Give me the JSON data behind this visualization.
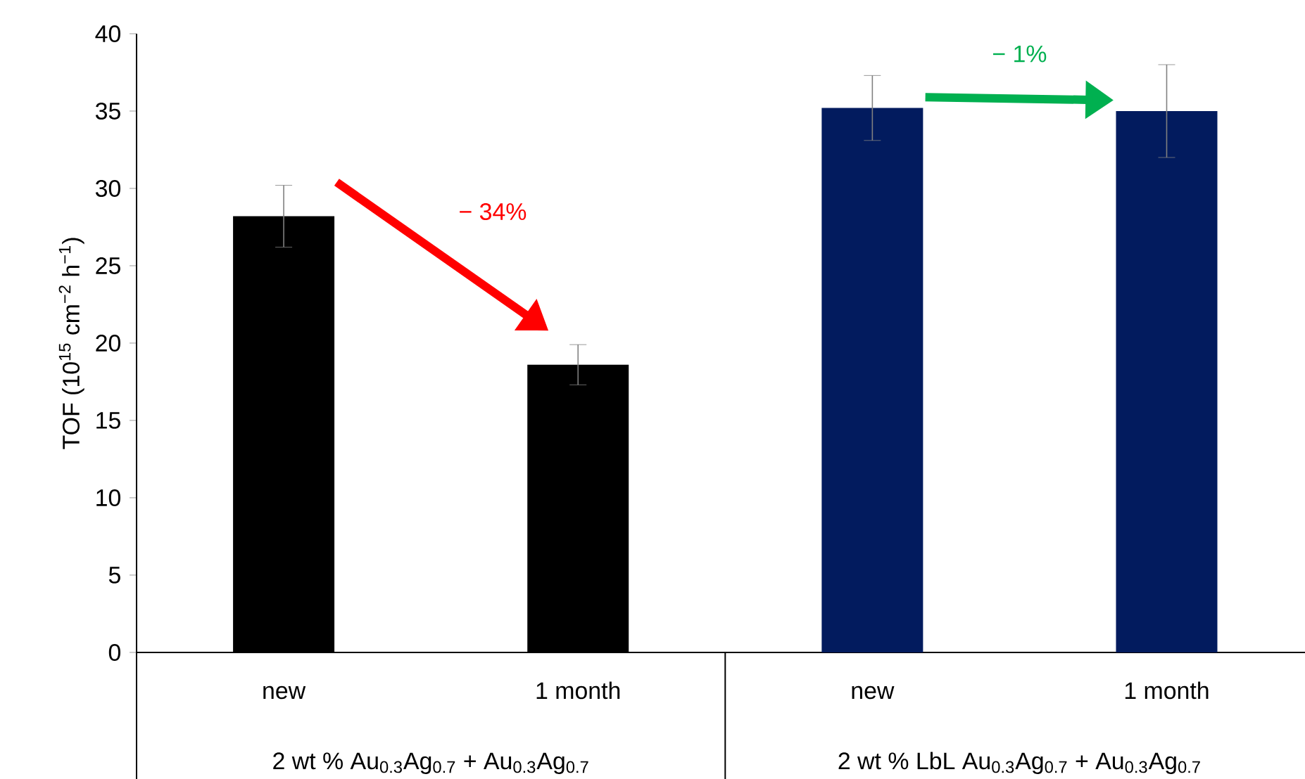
{
  "chart_data": {
    "type": "bar",
    "ylabel": "TOF (10$^{15}$ cm$^{−2}$ h$^{−1}$)",
    "categories": [
      "new",
      "1 month",
      "new",
      "1 month"
    ],
    "values": [
      28.2,
      18.6,
      35.2,
      35.0
    ],
    "errors": [
      2.0,
      1.3,
      2.1,
      3.0
    ],
    "colors": [
      "#000000",
      "#000000",
      "#021b5e",
      "#021b5e"
    ],
    "ylim": [
      0,
      40
    ],
    "yticks": [
      0,
      5,
      10,
      15,
      20,
      25,
      30,
      35,
      40
    ],
    "annotations": [
      "2 wt % Au$_{0.3}$Ag$_{0.7}$ + Au$_{0.3}$Ag$_{0.7}$",
      "2 wt % LbL Au$_{0.3}$Ag$_{0.7}$ + Au$_{0.3}$Ag$_{0.7}$",
      "− 34%",
      "− 1%"
    ]
  }
}
